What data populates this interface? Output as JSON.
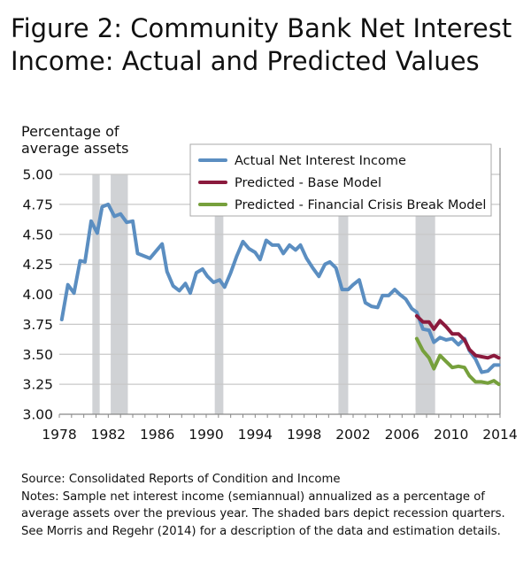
{
  "title": "Figure 2: Community Bank Net Interest Income: Actual and Predicted Values",
  "source": "Source: Consolidated Reports of Condition and Income",
  "notes": "Notes: Sample net interest income (semiannual) annualized as a percentage of average assets over the previous year. The shaded bars depict recession quarters. See Morris and Regehr (2014) for a description of the data and estimation details.",
  "chart_data": {
    "type": "line",
    "title": "Figure 2: Community Bank Net Interest Income: Actual and Predicted Values",
    "ylabel": "Percentage of average assets",
    "xlabel": "",
    "xlim": [
      1978,
      2014
    ],
    "ylim": [
      3.0,
      5.0
    ],
    "x_ticks": [
      "1978",
      "1982",
      "1986",
      "1990",
      "1994",
      "1998",
      "2002",
      "2006",
      "2010",
      "2014"
    ],
    "y_ticks": [
      "5.00",
      "4.75",
      "4.50",
      "4.25",
      "4.00",
      "3.75",
      "3.50",
      "3.25",
      "3.00"
    ],
    "grid": "horizontal",
    "legend": "top-right",
    "recessions": [
      [
        1980.7,
        1981.3
      ],
      [
        1982.2,
        1983.6
      ],
      [
        1990.7,
        1991.4
      ],
      [
        2000.8,
        2001.6
      ],
      [
        2007.1,
        2008.7
      ]
    ],
    "series": [
      {
        "name": "Actual Net Interest Income",
        "color": "#5b8ec1",
        "x": [
          1978.2,
          1978.7,
          1979.2,
          1979.7,
          1980.1,
          1980.6,
          1981.1,
          1981.5,
          1982.0,
          1982.5,
          1983.0,
          1983.5,
          1984.0,
          1984.4,
          1984.9,
          1985.4,
          1985.9,
          1986.4,
          1986.8,
          1987.3,
          1987.8,
          1988.3,
          1988.7,
          1989.2,
          1989.7,
          1990.1,
          1990.6,
          1991.1,
          1991.5,
          1992.0,
          1992.5,
          1993.0,
          1993.5,
          1994.0,
          1994.4,
          1994.9,
          1995.4,
          1995.9,
          1996.3,
          1996.8,
          1997.3,
          1997.7,
          1998.2,
          1998.7,
          1999.2,
          1999.7,
          2000.1,
          2000.6,
          2001.1,
          2001.6,
          2002.0,
          2002.5,
          2003.0,
          2003.5,
          2004.0,
          2004.4,
          2004.9,
          2005.4,
          2005.8,
          2006.3,
          2006.8,
          2007.2,
          2007.7,
          2008.2,
          2008.6,
          2009.1,
          2009.6,
          2010.1,
          2010.6,
          2011.1,
          2011.5,
          2012.0,
          2012.5,
          2013.0,
          2013.5,
          2013.9
        ],
        "y": [
          3.79,
          4.08,
          4.01,
          4.28,
          4.27,
          4.61,
          4.51,
          4.73,
          4.75,
          4.65,
          4.67,
          4.6,
          4.61,
          4.34,
          4.32,
          4.3,
          4.36,
          4.42,
          4.19,
          4.07,
          4.03,
          4.09,
          4.01,
          4.18,
          4.21,
          4.15,
          4.1,
          4.12,
          4.06,
          4.18,
          4.32,
          4.44,
          4.38,
          4.35,
          4.29,
          4.45,
          4.41,
          4.41,
          4.34,
          4.41,
          4.37,
          4.41,
          4.3,
          4.22,
          4.15,
          4.25,
          4.27,
          4.22,
          4.04,
          4.04,
          4.08,
          4.12,
          3.93,
          3.9,
          3.89,
          3.99,
          3.99,
          4.04,
          4.0,
          3.96,
          3.88,
          3.85,
          3.71,
          3.7,
          3.6,
          3.64,
          3.62,
          3.63,
          3.58,
          3.63,
          3.53,
          3.46,
          3.35,
          3.36,
          3.41,
          3.41
        ]
      },
      {
        "name": "Predicted - Base Model",
        "color": "#8b1a3d",
        "x": [
          2007.2,
          2007.7,
          2008.2,
          2008.6,
          2009.1,
          2009.6,
          2010.1,
          2010.6,
          2011.1,
          2011.5,
          2012.0,
          2012.5,
          2013.0,
          2013.5,
          2013.9
        ],
        "y": [
          3.82,
          3.77,
          3.77,
          3.71,
          3.78,
          3.73,
          3.67,
          3.67,
          3.62,
          3.54,
          3.49,
          3.48,
          3.47,
          3.49,
          3.47
        ]
      },
      {
        "name": "Predicted - Financial Crisis Break Model",
        "color": "#76a03c",
        "x": [
          2007.2,
          2007.7,
          2008.2,
          2008.6,
          2009.1,
          2009.6,
          2010.1,
          2010.6,
          2011.1,
          2011.5,
          2012.0,
          2012.5,
          2013.0,
          2013.5,
          2013.9
        ],
        "y": [
          3.63,
          3.53,
          3.47,
          3.38,
          3.49,
          3.44,
          3.39,
          3.4,
          3.39,
          3.32,
          3.27,
          3.27,
          3.26,
          3.28,
          3.25
        ]
      }
    ]
  }
}
